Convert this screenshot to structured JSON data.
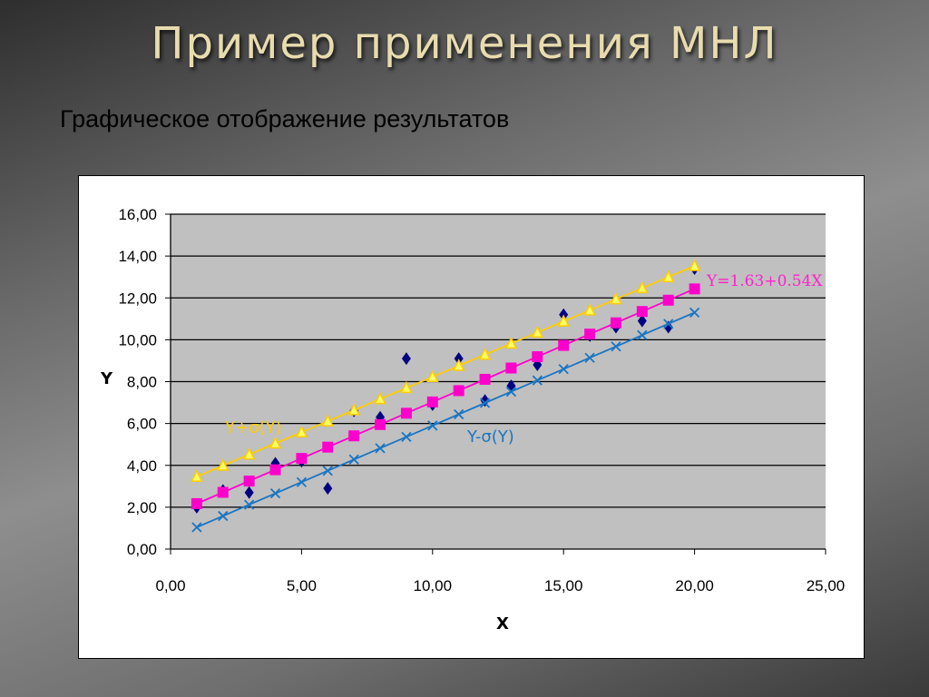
{
  "slide": {
    "title": "Пример применения МНЛ",
    "subtitle": "Графическое отображение результатов"
  },
  "chart_data": {
    "type": "scatter",
    "xlabel": "X",
    "ylabel": "Y",
    "xlim": [
      0,
      25
    ],
    "ylim": [
      0,
      16
    ],
    "x_ticks": [
      "0,00",
      "5,00",
      "10,00",
      "15,00",
      "20,00",
      "25,00"
    ],
    "y_ticks": [
      "0,00",
      "2,00",
      "4,00",
      "6,00",
      "8,00",
      "10,00",
      "12,00",
      "14,00",
      "16,00"
    ],
    "grid": "horizontal",
    "plot_background": "#c0c0c0",
    "series": [
      {
        "marker": "diamond",
        "color": "#000080",
        "line": false,
        "x": [
          1,
          2,
          3,
          4,
          5,
          6,
          7,
          8,
          9,
          10,
          11,
          12,
          13,
          14,
          15,
          16,
          17,
          18,
          19,
          20
        ],
        "y": [
          2.0,
          2.8,
          2.7,
          4.1,
          4.2,
          2.9,
          6.6,
          6.3,
          9.1,
          6.9,
          9.1,
          7.1,
          7.8,
          8.8,
          11.2,
          10.2,
          10.6,
          10.9,
          10.6,
          13.4
        ]
      },
      {
        "name": "Y+σ(Y)",
        "marker": "triangle",
        "color": "#ffcc00",
        "line": true,
        "x": [
          1,
          2,
          3,
          4,
          5,
          6,
          7,
          8,
          9,
          10,
          11,
          12,
          13,
          14,
          15,
          16,
          17,
          18,
          19,
          20
        ],
        "y": [
          3.46,
          3.99,
          4.52,
          5.05,
          5.58,
          6.11,
          6.64,
          7.17,
          7.7,
          8.23,
          8.76,
          9.29,
          9.82,
          10.35,
          10.88,
          11.41,
          11.94,
          12.47,
          13.0,
          13.53
        ]
      },
      {
        "name": "Y=1.63+0.54X",
        "marker": "square",
        "color": "#ff00cc",
        "line": true,
        "x": [
          1,
          2,
          3,
          4,
          5,
          6,
          7,
          8,
          9,
          10,
          11,
          12,
          13,
          14,
          15,
          16,
          17,
          18,
          19,
          20
        ],
        "y": [
          2.17,
          2.71,
          3.25,
          3.79,
          4.33,
          4.87,
          5.41,
          5.95,
          6.49,
          7.03,
          7.57,
          8.11,
          8.65,
          9.19,
          9.73,
          10.27,
          10.81,
          11.35,
          11.89,
          12.43
        ]
      },
      {
        "name": "Y-σ(Y)",
        "marker": "x",
        "color": "#1a75c2",
        "line": true,
        "x": [
          1,
          2,
          3,
          4,
          5,
          6,
          7,
          8,
          9,
          10,
          11,
          12,
          13,
          14,
          15,
          16,
          17,
          18,
          19,
          20
        ],
        "y": [
          1.04,
          1.58,
          2.12,
          2.66,
          3.2,
          3.74,
          4.28,
          4.82,
          5.36,
          5.9,
          6.44,
          6.98,
          7.52,
          8.06,
          8.6,
          9.14,
          9.68,
          10.22,
          10.76,
          11.3
        ]
      }
    ],
    "annotations": {
      "upper": "Y+σ(Y)",
      "lower": "Y-σ(Y)",
      "equation": "Y=1.63+0.54X"
    }
  }
}
